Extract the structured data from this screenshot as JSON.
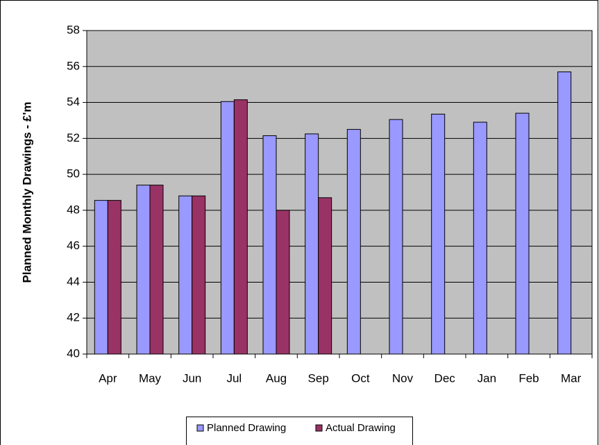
{
  "chart_data": {
    "type": "bar",
    "y_label": "Planned Monthly Drawings - £'m",
    "categories": [
      "Apr",
      "May",
      "Jun",
      "Jul",
      "Aug",
      "Sep",
      "Oct",
      "Nov",
      "Dec",
      "Jan",
      "Feb",
      "Mar"
    ],
    "series": [
      {
        "name": "Planned Drawing",
        "color": "#9999ff",
        "values": [
          48.55,
          49.4,
          48.8,
          54.05,
          52.15,
          52.25,
          52.5,
          53.05,
          53.35,
          52.9,
          53.4,
          55.7
        ]
      },
      {
        "name": "Actual Drawing",
        "color": "#993366",
        "values": [
          48.55,
          49.4,
          48.8,
          54.15,
          48.0,
          48.7,
          null,
          null,
          null,
          null,
          null,
          null
        ]
      }
    ],
    "ylim": [
      40,
      58
    ],
    "yticks": [
      40,
      42,
      44,
      46,
      48,
      50,
      52,
      54,
      56,
      58
    ],
    "grid": true,
    "plot_background": "#c0c0c0",
    "legend": "bottom"
  }
}
